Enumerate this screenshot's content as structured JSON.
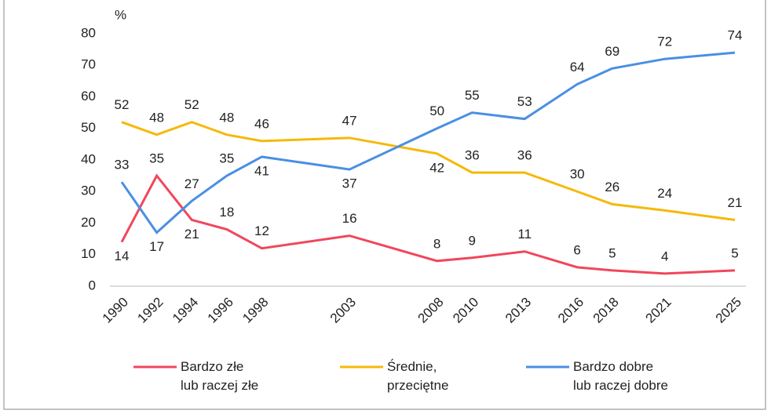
{
  "chart_data": {
    "type": "line",
    "y_unit": "%",
    "x": [
      1990,
      1992,
      1994,
      1996,
      1998,
      2003,
      2008,
      2010,
      2013,
      2016,
      2018,
      2021,
      2025
    ],
    "xlim": [
      1990,
      2025
    ],
    "xticks": [
      1990,
      1992,
      1994,
      1996,
      1998,
      2003,
      2008,
      2010,
      2013,
      2016,
      2018,
      2021,
      2025
    ],
    "ylim": [
      0,
      80
    ],
    "yticks": [
      0,
      10,
      20,
      30,
      40,
      50,
      60,
      70,
      80
    ],
    "series": [
      {
        "name": "Bardzo złe\nlub raczej złe",
        "color": "#f0475c",
        "values": [
          14,
          35,
          21,
          18,
          12,
          16,
          8,
          9,
          11,
          6,
          5,
          4,
          5
        ]
      },
      {
        "name": "Średnie,\nprzeciętne",
        "color": "#f5b90a",
        "values": [
          52,
          48,
          52,
          48,
          46,
          47,
          42,
          36,
          36,
          30,
          26,
          24,
          21
        ]
      },
      {
        "name": "Bardzo dobre\nlub raczej dobre",
        "color": "#4a8fe3",
        "values": [
          33,
          17,
          27,
          35,
          41,
          37,
          50,
          55,
          53,
          64,
          69,
          72,
          74
        ]
      }
    ]
  }
}
